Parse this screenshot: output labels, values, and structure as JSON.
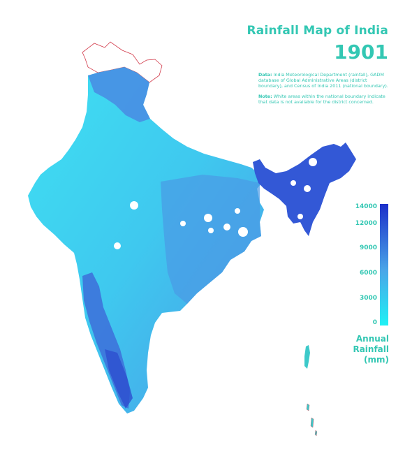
{
  "title": "Rainfall Map of India",
  "year": "1901",
  "source_label": "Data:",
  "source_text": "India Meteorological Department (rainfall), GADM database of Global Administrative Areas (district boundary), and Census of India 2011 (national boundary).",
  "note_label": "Note:",
  "note_text": "White areas within the national boundary indicate that data is not available for the district concerned.",
  "legend": {
    "title_lines": [
      "Annual",
      "Rainfall",
      "(mm)"
    ],
    "ticks": [
      "14000",
      "12000",
      "9000",
      "6000",
      "3000",
      "0"
    ],
    "tick_values": [
      14000,
      12000,
      9000,
      6000,
      3000,
      0
    ],
    "max": 14500,
    "color_low": "#1ff1f5",
    "color_mid": "#4aa6e8",
    "color_high": "#1c2fc9"
  },
  "colors": {
    "accent": "#33c7b3",
    "border": "#d23b4b"
  }
}
